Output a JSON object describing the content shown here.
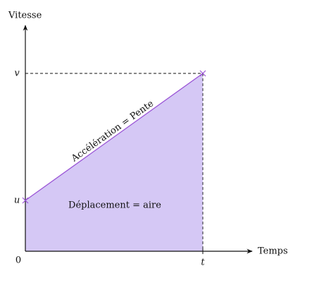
{
  "axes": {
    "y_label": "Vitesse",
    "x_label": "Temps",
    "origin": "0"
  },
  "points": {
    "initial_speed": "u",
    "final_speed": "v",
    "time": "t"
  },
  "annotations": {
    "slope": "Accélération = Pente",
    "area": "Déplacement = aire"
  }
}
